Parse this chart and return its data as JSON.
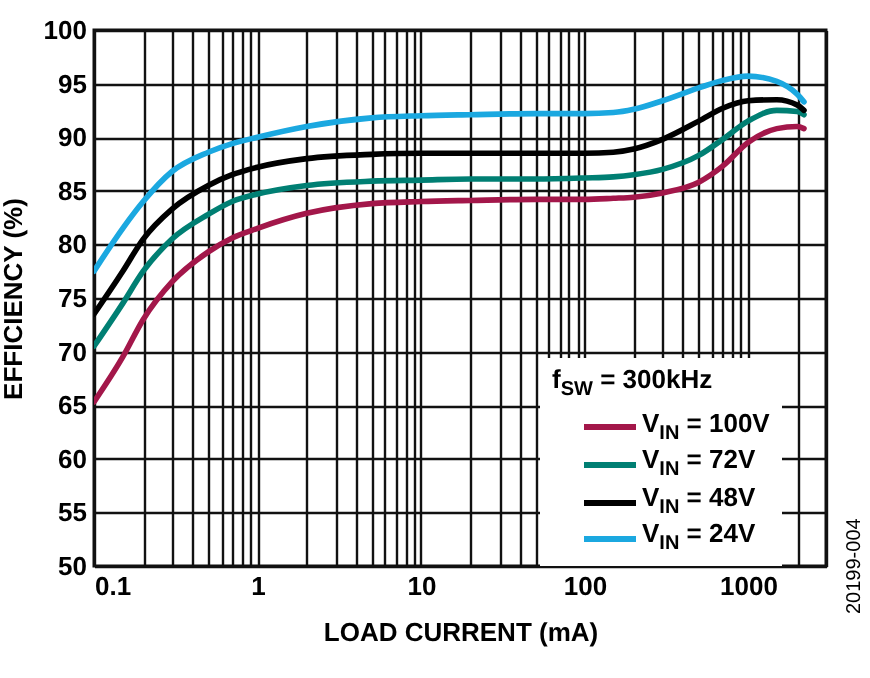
{
  "chart_data": {
    "type": "line",
    "xlabel": "LOAD CURRENT (mA)",
    "ylabel": "EFFICIENCY (%)",
    "legend_title": "f$_{SW}$ = 300kHz",
    "log": "x",
    "grid": true,
    "legend": "bottom right",
    "line_style": "solid",
    "x": [
      0.1,
      0.15,
      0.2,
      0.3,
      0.5,
      0.7,
      1,
      2,
      5,
      10,
      20,
      50,
      100,
      150,
      200,
      300,
      500,
      700,
      1000,
      1500,
      2000,
      2200
    ],
    "xlim": [
      0.1,
      3000
    ],
    "ylim": [
      50,
      100
    ],
    "xticks": [
      0.1,
      {
        "value": 0.2,
        "label": null
      },
      {
        "value": 0.3,
        "label": null
      },
      {
        "value": 0.4,
        "label": null
      },
      {
        "value": 0.5,
        "label": null
      },
      {
        "value": 0.6,
        "label": null
      },
      {
        "value": 0.7,
        "label": null
      },
      {
        "value": 0.8,
        "label": null
      },
      {
        "value": 0.9,
        "label": null
      },
      1,
      {
        "value": 2,
        "label": null
      },
      {
        "value": 3,
        "label": null
      },
      {
        "value": 4,
        "label": null
      },
      {
        "value": 5,
        "label": null
      },
      {
        "value": 6,
        "label": null
      },
      {
        "value": 7,
        "label": null
      },
      {
        "value": 8,
        "label": null
      },
      {
        "value": 9,
        "label": null
      },
      10,
      {
        "value": 20,
        "label": null
      },
      {
        "value": 30,
        "label": null
      },
      {
        "value": 40,
        "label": null
      },
      {
        "value": 50,
        "label": null
      },
      {
        "value": 60,
        "label": null
      },
      {
        "value": 70,
        "label": null
      },
      {
        "value": 80,
        "label": null
      },
      {
        "value": 90,
        "label": null
      },
      100,
      {
        "value": 200,
        "label": null
      },
      {
        "value": 300,
        "label": null
      },
      {
        "value": 400,
        "label": null
      },
      {
        "value": 500,
        "label": null
      },
      {
        "value": 600,
        "label": null
      },
      {
        "value": 700,
        "label": null
      },
      {
        "value": 800,
        "label": null
      },
      {
        "value": 900,
        "label": null
      },
      1000,
      {
        "value": 2000,
        "label": null
      },
      {
        "value": 3000,
        "label": null
      }
    ],
    "yticks": [
      50,
      55,
      60,
      65,
      70,
      75,
      80,
      85,
      90,
      95,
      100
    ],
    "annotations": [
      "20199-004"
    ],
    "series": [
      {
        "name": "V$_{IN}$ = 100V",
        "color": "#a3174a",
        "values": [
          65.3,
          69.5,
          73,
          76.5,
          79.3,
          80.6,
          81.5,
          82.9,
          83.8,
          84,
          84.1,
          84.2,
          84.2,
          84.3,
          84.4,
          84.8,
          85.8,
          87.3,
          89.5,
          90.8,
          91,
          90.8
        ]
      },
      {
        "name": "V$_{IN}$ = 72V",
        "color": "#007f73",
        "values": [
          70.5,
          74.5,
          77.5,
          80.5,
          82.8,
          84,
          84.7,
          85.5,
          85.9,
          86,
          86.1,
          86.1,
          86.2,
          86.3,
          86.5,
          87,
          88.3,
          89.8,
          91.5,
          92.5,
          92.4,
          92.1
        ]
      },
      {
        "name": "V$_{IN}$ = 48V",
        "color": "#000000",
        "values": [
          73.5,
          77.5,
          80.5,
          83.3,
          85.5,
          86.5,
          87.2,
          88,
          88.4,
          88.5,
          88.5,
          88.5,
          88.5,
          88.6,
          88.9,
          89.8,
          91.5,
          92.7,
          93.4,
          93.5,
          93,
          92.5
        ]
      },
      {
        "name": "V$_{IN}$ = 24V",
        "color": "#1ba8e0",
        "values": [
          77.5,
          81.5,
          84,
          86.8,
          88.6,
          89.4,
          90,
          91,
          91.8,
          92,
          92.1,
          92.2,
          92.2,
          92.3,
          92.6,
          93.4,
          94.6,
          95.3,
          95.7,
          95.2,
          94,
          93.3
        ]
      }
    ]
  }
}
